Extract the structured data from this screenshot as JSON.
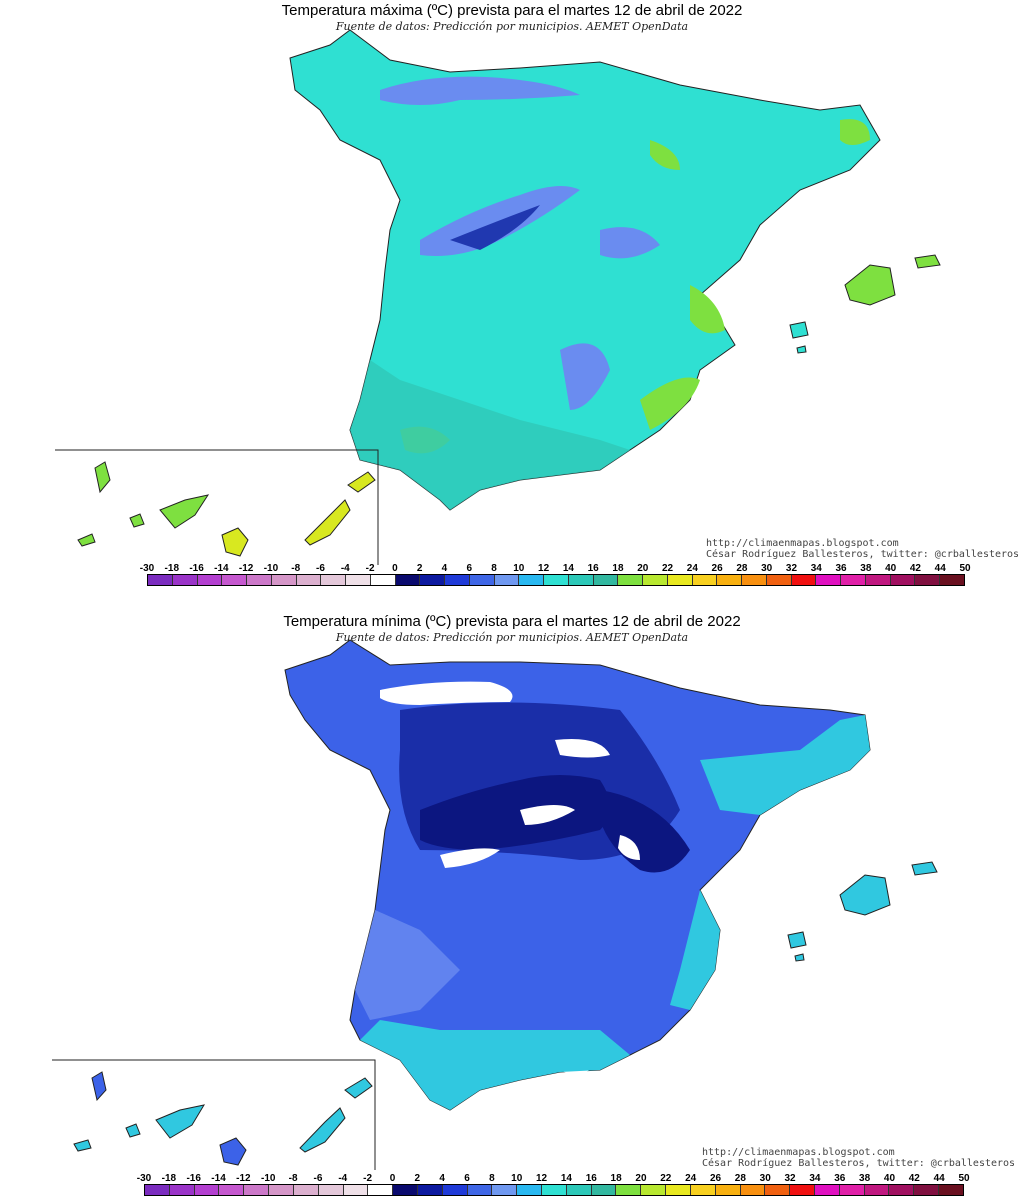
{
  "maps": [
    {
      "title": "Temperatura máxima (ºC) prevista para el martes 12 de abril de 2022",
      "source": "Fuente de datos: Predicción por municipios. AEMET OpenData",
      "credit_url": "http://climaenmapas.blogspot.com",
      "credit_author": "César Rodríguez Ballesteros, twitter: @crballesteros",
      "variable": "max",
      "fill_colors": {
        "land": "#2fe0d2",
        "coast": "#30c8b8",
        "cold": "#6a8cf0",
        "coldest": "#2038b0",
        "warm": "#7ee040",
        "hot": "#d8e820"
      }
    },
    {
      "title": "Temperatura mínima (ºC) prevista para el martes 12 de abril de 2022",
      "source": "Fuente de datos: Predicción por municipios. AEMET OpenData",
      "credit_url": "http://climaenmapas.blogspot.com",
      "credit_author": "César Rodríguez Ballesteros, twitter: @crballesteros",
      "variable": "min",
      "fill_colors": {
        "land": "#3c62e8",
        "coast": "#30c8e0",
        "cold": "#1a2ea8",
        "coldest": "#0c1680",
        "warm": "#6a8cf0",
        "hot": "#ffffff"
      }
    }
  ],
  "legend": {
    "labels": [
      "-30",
      "-18",
      "-16",
      "-14",
      "-12",
      "-10",
      "-8",
      "-6",
      "-4",
      "-2",
      "0",
      "2",
      "4",
      "6",
      "8",
      "10",
      "12",
      "14",
      "16",
      "18",
      "20",
      "22",
      "24",
      "26",
      "28",
      "30",
      "32",
      "34",
      "36",
      "38",
      "40",
      "42",
      "44",
      "50"
    ],
    "colors": [
      "#7b2cbf",
      "#9a34c8",
      "#b33fd0",
      "#c558cf",
      "#cc78c9",
      "#d596c8",
      "#dcb0cf",
      "#e4c8da",
      "#efe0e8",
      "#ffffff",
      "#0a0a6e",
      "#0d1aa0",
      "#1f3ad8",
      "#3f66e6",
      "#6f98f0",
      "#29b8f0",
      "#2fe0d2",
      "#2cc8b8",
      "#32b8a0",
      "#7ee040",
      "#b8e830",
      "#e8e820",
      "#f8d020",
      "#f8b010",
      "#f89010",
      "#f06010",
      "#f01010",
      "#e010c0",
      "#e020a8",
      "#c01880",
      "#a01060",
      "#801040",
      "#6a1020"
    ]
  }
}
